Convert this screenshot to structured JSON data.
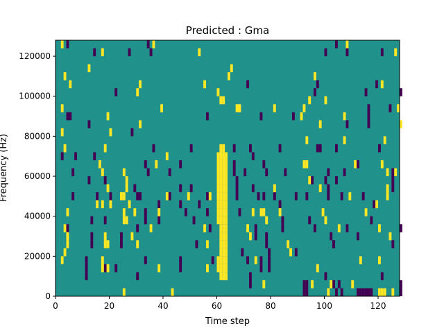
{
  "chart_data": {
    "type": "heatmap",
    "title": "Predicted : Gma",
    "xlabel": "Time step",
    "ylabel": "Frequency (Hz)",
    "xlim": [
      0,
      128
    ],
    "ylim": [
      0,
      128000
    ],
    "x_ticks": [
      0,
      20,
      40,
      60,
      80,
      100,
      120
    ],
    "y_ticks": [
      0,
      20000,
      40000,
      60000,
      80000,
      100000,
      120000
    ],
    "x_tick_labels": [
      "0",
      "20",
      "40",
      "60",
      "80",
      "100",
      "120"
    ],
    "y_tick_labels": [
      "0",
      "20000",
      "40000",
      "60000",
      "80000",
      "100000",
      "120000"
    ],
    "grid": false,
    "legend": "none",
    "colors": {
      "background_level": "#21918c",
      "low_level": "#440154",
      "high_level": "#fde725"
    },
    "background_value": 0,
    "cell_width_steps": 1,
    "cell_height_hz": 4000,
    "cells_low_value_-1": [
      [
        4,
        124000
      ],
      [
        14,
        120000
      ],
      [
        27,
        120000
      ],
      [
        34,
        124000
      ],
      [
        35,
        120000
      ],
      [
        100,
        120000
      ],
      [
        104,
        124000
      ],
      [
        108,
        120000
      ],
      [
        121,
        120000
      ],
      [
        22,
        100000
      ],
      [
        71,
        104000
      ],
      [
        96,
        100000
      ],
      [
        97,
        104000
      ],
      [
        115,
        100000
      ],
      [
        119,
        104000
      ],
      [
        128,
        100000
      ],
      [
        4,
        88000
      ],
      [
        5,
        88000
      ],
      [
        12,
        84000
      ],
      [
        28,
        80000
      ],
      [
        56,
        88000
      ],
      [
        76,
        88000
      ],
      [
        88,
        88000
      ],
      [
        116,
        88000
      ],
      [
        116,
        92000
      ],
      [
        116,
        84000
      ],
      [
        108,
        84000
      ],
      [
        124,
        92000
      ],
      [
        2,
        68000
      ],
      [
        7,
        68000
      ],
      [
        14,
        68000
      ],
      [
        36,
        72000
      ],
      [
        50,
        72000
      ],
      [
        66,
        72000
      ],
      [
        72,
        72000
      ],
      [
        73,
        68000
      ],
      [
        83,
        72000
      ],
      [
        97,
        72000
      ],
      [
        98,
        72000
      ],
      [
        104,
        72000
      ],
      [
        120,
        72000
      ],
      [
        6,
        60000
      ],
      [
        12,
        56000
      ],
      [
        18,
        56000
      ],
      [
        29,
        52000
      ],
      [
        33,
        64000
      ],
      [
        34,
        60000
      ],
      [
        42,
        60000
      ],
      [
        46,
        64000
      ],
      [
        46,
        52000
      ],
      [
        50,
        52000
      ],
      [
        66,
        64000
      ],
      [
        67,
        56000
      ],
      [
        67,
        52000
      ],
      [
        66,
        60000
      ],
      [
        70,
        60000
      ],
      [
        73,
        52000
      ],
      [
        77,
        64000
      ],
      [
        77,
        48000
      ],
      [
        78,
        60000
      ],
      [
        85,
        60000
      ],
      [
        95,
        56000
      ],
      [
        100,
        56000
      ],
      [
        101,
        52000
      ],
      [
        101,
        48000
      ],
      [
        101,
        60000
      ],
      [
        104,
        56000
      ],
      [
        107,
        60000
      ],
      [
        112,
        64000
      ],
      [
        125,
        56000
      ],
      [
        125,
        52000
      ],
      [
        125,
        60000
      ],
      [
        6,
        48000
      ],
      [
        15,
        48000
      ],
      [
        20,
        48000
      ],
      [
        30,
        48000
      ],
      [
        31,
        48000
      ],
      [
        38,
        44000
      ],
      [
        42,
        48000
      ],
      [
        46,
        44000
      ],
      [
        53,
        44000
      ],
      [
        56,
        48000
      ],
      [
        67,
        48000
      ],
      [
        75,
        48000
      ],
      [
        81,
        48000
      ],
      [
        83,
        44000
      ],
      [
        89,
        48000
      ],
      [
        93,
        48000
      ],
      [
        106,
        48000
      ],
      [
        114,
        48000
      ],
      [
        118,
        44000
      ],
      [
        4,
        32000
      ],
      [
        13,
        36000
      ],
      [
        13,
        28000
      ],
      [
        13,
        24000
      ],
      [
        18,
        36000
      ],
      [
        24,
        28000
      ],
      [
        24,
        24000
      ],
      [
        30,
        32000
      ],
      [
        33,
        40000
      ],
      [
        33,
        36000
      ],
      [
        38,
        36000
      ],
      [
        48,
        40000
      ],
      [
        51,
        36000
      ],
      [
        56,
        40000
      ],
      [
        57,
        32000
      ],
      [
        68,
        40000
      ],
      [
        74,
        32000
      ],
      [
        74,
        28000
      ],
      [
        78,
        24000
      ],
      [
        79,
        20000
      ],
      [
        79,
        16000
      ],
      [
        79,
        12000
      ],
      [
        78,
        28000
      ],
      [
        84,
        36000
      ],
      [
        84,
        32000
      ],
      [
        94,
        36000
      ],
      [
        96,
        32000
      ],
      [
        102,
        28000
      ],
      [
        103,
        24000
      ],
      [
        108,
        32000
      ],
      [
        112,
        28000
      ],
      [
        117,
        36000
      ],
      [
        125,
        24000
      ],
      [
        128,
        32000
      ],
      [
        11,
        16000
      ],
      [
        11,
        12000
      ],
      [
        11,
        8000
      ],
      [
        18,
        12000
      ],
      [
        22,
        12000
      ],
      [
        30,
        8000
      ],
      [
        33,
        16000
      ],
      [
        46,
        16000
      ],
      [
        46,
        12000
      ],
      [
        52,
        24000
      ],
      [
        58,
        16000
      ],
      [
        63,
        24000
      ],
      [
        69,
        20000
      ],
      [
        71,
        16000
      ],
      [
        72,
        8000
      ],
      [
        72,
        4000
      ],
      [
        76,
        16000
      ],
      [
        76,
        12000
      ],
      [
        89,
        20000
      ],
      [
        92,
        4000
      ],
      [
        92,
        0
      ],
      [
        93,
        4000
      ],
      [
        93,
        0
      ],
      [
        100,
        8000
      ],
      [
        103,
        24000
      ],
      [
        103,
        4000
      ],
      [
        104,
        0
      ],
      [
        105,
        4000
      ],
      [
        106,
        0
      ],
      [
        112,
        0
      ],
      [
        113,
        0
      ],
      [
        114,
        0
      ],
      [
        115,
        0
      ],
      [
        116,
        0
      ],
      [
        117,
        0
      ],
      [
        128,
        4000
      ],
      [
        128,
        0
      ],
      [
        121,
        8000
      ]
    ],
    "cells_high_value_1": [
      [
        2,
        124000
      ],
      [
        17,
        120000
      ],
      [
        36,
        124000
      ],
      [
        53,
        120000
      ],
      [
        108,
        124000
      ],
      [
        126,
        120000
      ],
      [
        12,
        112000
      ],
      [
        3,
        108000
      ],
      [
        5,
        104000
      ],
      [
        31,
        104000
      ],
      [
        55,
        104000
      ],
      [
        64,
        108000
      ],
      [
        65,
        112000
      ],
      [
        96,
        108000
      ],
      [
        121,
        104000
      ],
      [
        30,
        100000
      ],
      [
        60,
        100000
      ],
      [
        61,
        96000
      ],
      [
        62,
        96000
      ],
      [
        100,
        96000
      ],
      [
        2,
        92000
      ],
      [
        19,
        88000
      ],
      [
        39,
        92000
      ],
      [
        67,
        92000
      ],
      [
        68,
        92000
      ],
      [
        81,
        92000
      ],
      [
        91,
        88000
      ],
      [
        92,
        92000
      ],
      [
        94,
        96000
      ],
      [
        107,
        88000
      ],
      [
        127,
        92000
      ],
      [
        2,
        80000
      ],
      [
        20,
        80000
      ],
      [
        31,
        84000
      ],
      [
        98,
        84000
      ],
      [
        128,
        84000
      ],
      [
        3,
        72000
      ],
      [
        18,
        72000
      ],
      [
        93,
        76000
      ],
      [
        107,
        76000
      ],
      [
        122,
        76000
      ],
      [
        41,
        68000
      ],
      [
        61,
        72000
      ],
      [
        62,
        72000
      ],
      [
        60,
        68000
      ],
      [
        61,
        68000
      ],
      [
        62,
        68000
      ],
      [
        63,
        68000
      ],
      [
        60,
        64000
      ],
      [
        61,
        64000
      ],
      [
        62,
        64000
      ],
      [
        63,
        64000
      ],
      [
        16,
        64000
      ],
      [
        17,
        60000
      ],
      [
        25,
        60000
      ],
      [
        26,
        56000
      ],
      [
        26,
        52000
      ],
      [
        37,
        64000
      ],
      [
        92,
        64000
      ],
      [
        93,
        64000
      ],
      [
        94,
        56000
      ],
      [
        111,
        64000
      ],
      [
        121,
        64000
      ],
      [
        123,
        60000
      ],
      [
        126,
        60000
      ],
      [
        60,
        60000
      ],
      [
        61,
        60000
      ],
      [
        62,
        60000
      ],
      [
        63,
        60000
      ],
      [
        60,
        56000
      ],
      [
        61,
        56000
      ],
      [
        62,
        56000
      ],
      [
        63,
        56000
      ],
      [
        60,
        52000
      ],
      [
        61,
        52000
      ],
      [
        62,
        52000
      ],
      [
        63,
        52000
      ],
      [
        60,
        48000
      ],
      [
        61,
        48000
      ],
      [
        62,
        48000
      ],
      [
        63,
        48000
      ],
      [
        19,
        52000
      ],
      [
        24,
        48000
      ],
      [
        25,
        48000
      ],
      [
        17,
        44000
      ],
      [
        27,
        44000
      ],
      [
        41,
        48000
      ],
      [
        49,
        48000
      ],
      [
        57,
        48000
      ],
      [
        81,
        52000
      ],
      [
        98,
        52000
      ],
      [
        123,
        52000
      ],
      [
        123,
        48000
      ],
      [
        109,
        48000
      ],
      [
        60,
        44000
      ],
      [
        61,
        44000
      ],
      [
        62,
        44000
      ],
      [
        63,
        44000
      ],
      [
        60,
        40000
      ],
      [
        61,
        40000
      ],
      [
        62,
        40000
      ],
      [
        63,
        40000
      ],
      [
        60,
        36000
      ],
      [
        61,
        36000
      ],
      [
        62,
        36000
      ],
      [
        63,
        36000
      ],
      [
        61,
        32000
      ],
      [
        62,
        32000
      ],
      [
        63,
        32000
      ],
      [
        4,
        40000
      ],
      [
        15,
        44000
      ],
      [
        20,
        44000
      ],
      [
        25,
        40000
      ],
      [
        25,
        36000
      ],
      [
        26,
        36000
      ],
      [
        29,
        40000
      ],
      [
        38,
        40000
      ],
      [
        73,
        40000
      ],
      [
        76,
        40000
      ],
      [
        77,
        40000
      ],
      [
        78,
        36000
      ],
      [
        83,
        40000
      ],
      [
        99,
        40000
      ],
      [
        100,
        36000
      ],
      [
        115,
        40000
      ],
      [
        119,
        44000
      ],
      [
        3,
        32000
      ],
      [
        4,
        28000
      ],
      [
        4,
        24000
      ],
      [
        3,
        20000
      ],
      [
        2,
        16000
      ],
      [
        18,
        28000
      ],
      [
        18,
        24000
      ],
      [
        19,
        24000
      ],
      [
        28,
        28000
      ],
      [
        30,
        24000
      ],
      [
        35,
        32000
      ],
      [
        55,
        32000
      ],
      [
        56,
        24000
      ],
      [
        71,
        32000
      ],
      [
        72,
        28000
      ],
      [
        86,
        24000
      ],
      [
        105,
        32000
      ],
      [
        120,
        32000
      ],
      [
        124,
        28000
      ],
      [
        61,
        28000
      ],
      [
        62,
        28000
      ],
      [
        63,
        28000
      ],
      [
        61,
        24000
      ],
      [
        62,
        24000
      ],
      [
        63,
        24000
      ],
      [
        61,
        20000
      ],
      [
        62,
        20000
      ],
      [
        63,
        20000
      ],
      [
        60,
        16000
      ],
      [
        61,
        16000
      ],
      [
        62,
        16000
      ],
      [
        63,
        16000
      ],
      [
        60,
        12000
      ],
      [
        61,
        12000
      ],
      [
        62,
        12000
      ],
      [
        63,
        12000
      ],
      [
        61,
        8000
      ],
      [
        62,
        8000
      ],
      [
        63,
        8000
      ],
      [
        17,
        16000
      ],
      [
        17,
        12000
      ],
      [
        19,
        12000
      ],
      [
        38,
        12000
      ],
      [
        56,
        12000
      ],
      [
        74,
        16000
      ],
      [
        87,
        20000
      ],
      [
        97,
        12000
      ],
      [
        113,
        16000
      ],
      [
        120,
        16000
      ],
      [
        95,
        4000
      ],
      [
        102,
        4000
      ],
      [
        110,
        4000
      ],
      [
        120,
        0
      ],
      [
        121,
        0
      ],
      [
        122,
        0
      ],
      [
        125,
        0
      ],
      [
        101,
        0
      ],
      [
        77,
        4000
      ],
      [
        43,
        0
      ],
      [
        25,
        0
      ]
    ]
  }
}
